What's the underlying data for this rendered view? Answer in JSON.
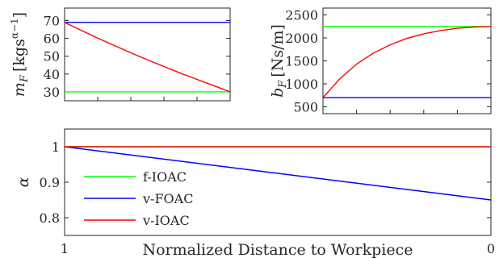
{
  "chart_data": [
    {
      "type": "line",
      "ylabel": "m_F [kgs^(α−1)]",
      "ylabel_parts": {
        "var": "m",
        "sub": "F",
        "unit": "[kgs",
        "sup": "α−1",
        "close": "]"
      },
      "xlim": [
        1,
        0
      ],
      "ylim": [
        25,
        77
      ],
      "yticks": [
        30,
        40,
        50,
        60,
        70
      ],
      "xtick_labels_shown": false,
      "series": [
        {
          "name": "f-IOAC",
          "color": "#00ff00",
          "x": [
            1,
            0
          ],
          "y": [
            30,
            30
          ]
        },
        {
          "name": "v-FOAC",
          "color": "#0000ff",
          "x": [
            1,
            0
          ],
          "y": [
            69,
            69
          ]
        },
        {
          "name": "v-IOAC",
          "color": "#ff0000",
          "x": [
            1,
            0.9,
            0.8,
            0.7,
            0.6,
            0.5,
            0.4,
            0.3,
            0.2,
            0.1,
            0
          ],
          "y": [
            69,
            64.5,
            60.2,
            56,
            51.9,
            48,
            44.2,
            40.5,
            37,
            33.5,
            30
          ]
        }
      ]
    },
    {
      "type": "line",
      "ylabel": "b_F [Ns/m]",
      "ylabel_parts": {
        "var": "b",
        "sub": "F",
        "unit": "[Ns/m]"
      },
      "xlim": [
        1,
        0
      ],
      "ylim": [
        350,
        2650
      ],
      "yticks": [
        500,
        1000,
        1500,
        2000,
        2500
      ],
      "xtick_labels_shown": false,
      "series": [
        {
          "name": "f-IOAC",
          "color": "#00ff00",
          "x": [
            1,
            0
          ],
          "y": [
            2250,
            2250
          ]
        },
        {
          "name": "v-FOAC",
          "color": "#0000ff",
          "x": [
            1,
            0
          ],
          "y": [
            700,
            700
          ]
        },
        {
          "name": "v-IOAC",
          "color": "#ff0000",
          "x": [
            1,
            0.9,
            0.8,
            0.7,
            0.6,
            0.5,
            0.4,
            0.3,
            0.2,
            0.1,
            0
          ],
          "y": [
            700,
            1110,
            1430,
            1670,
            1850,
            1990,
            2090,
            2160,
            2210,
            2235,
            2250
          ]
        }
      ]
    },
    {
      "type": "line",
      "ylabel": "α",
      "xlabel": "Normalized Distance to Workpiece",
      "xlim": [
        1,
        0
      ],
      "ylim": [
        0.75,
        1.05
      ],
      "yticks": [
        0.8,
        0.9,
        1
      ],
      "ytick_labels": [
        "0.8",
        "0.9",
        "1"
      ],
      "xticks": [
        1,
        0
      ],
      "xtick_labels": [
        "1",
        "0"
      ],
      "legend": {
        "placement": "lower-left",
        "entries": [
          "f-IOAC",
          "v-FOAC",
          "v-IOAC"
        ]
      },
      "series": [
        {
          "name": "f-IOAC",
          "color": "#00ff00",
          "x": [
            1,
            0
          ],
          "y": [
            1,
            1
          ]
        },
        {
          "name": "v-FOAC",
          "color": "#0000ff",
          "x": [
            1,
            0
          ],
          "y": [
            1,
            0.85
          ]
        },
        {
          "name": "v-IOAC",
          "color": "#ff0000",
          "x": [
            1,
            0
          ],
          "y": [
            1,
            1
          ]
        }
      ]
    }
  ]
}
